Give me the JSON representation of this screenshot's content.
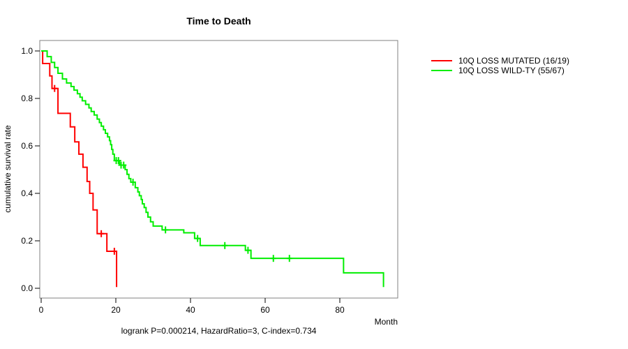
{
  "chart_data": {
    "type": "line",
    "subtype": "kaplan-meier-step",
    "title": "Time to Death",
    "xlabel": "Month",
    "ylabel": "cumulative survival rate",
    "footnote": "logrank P=0.000214, HazardRatio=3, C-index=0.734",
    "xlim": [
      0,
      96
    ],
    "ylim": [
      0.0,
      1.0
    ],
    "xticks": [
      0,
      20,
      40,
      60,
      80
    ],
    "yticks": [
      0.0,
      0.2,
      0.4,
      0.6,
      0.8,
      1.0
    ],
    "grid": false,
    "legend_position": "right-outside",
    "series": [
      {
        "name": "10Q LOSS MUTATED (16/19)",
        "color": "#ff0000",
        "steps": [
          [
            0,
            1.0
          ],
          [
            0.4,
            0.947
          ],
          [
            2.3,
            0.895
          ],
          [
            2.9,
            0.842
          ],
          [
            4.5,
            0.737
          ],
          [
            7.8,
            0.68
          ],
          [
            9.0,
            0.617
          ],
          [
            10.1,
            0.565
          ],
          [
            11.2,
            0.51
          ],
          [
            12.3,
            0.45
          ],
          [
            13.0,
            0.4
          ],
          [
            13.9,
            0.33
          ],
          [
            15.0,
            0.23
          ],
          [
            17.6,
            0.156
          ],
          [
            20.2,
            0.005
          ]
        ],
        "censors": [
          [
            3.6,
            0.842
          ],
          [
            16.1,
            0.23
          ],
          [
            19.6,
            0.156
          ]
        ]
      },
      {
        "name": "10Q LOSS WILD-TY (55/67)",
        "color": "#00ee00",
        "steps": [
          [
            0,
            1.0
          ],
          [
            1.6,
            0.976
          ],
          [
            2.7,
            0.952
          ],
          [
            3.6,
            0.93
          ],
          [
            4.5,
            0.906
          ],
          [
            5.7,
            0.882
          ],
          [
            6.8,
            0.865
          ],
          [
            8.0,
            0.85
          ],
          [
            8.8,
            0.835
          ],
          [
            9.7,
            0.82
          ],
          [
            10.4,
            0.805
          ],
          [
            11.0,
            0.79
          ],
          [
            11.9,
            0.775
          ],
          [
            12.8,
            0.76
          ],
          [
            13.4,
            0.745
          ],
          [
            14.2,
            0.73
          ],
          [
            15.0,
            0.713
          ],
          [
            15.6,
            0.698
          ],
          [
            16.1,
            0.683
          ],
          [
            16.7,
            0.668
          ],
          [
            17.2,
            0.653
          ],
          [
            17.8,
            0.638
          ],
          [
            18.3,
            0.622
          ],
          [
            18.6,
            0.605
          ],
          [
            18.9,
            0.585
          ],
          [
            19.2,
            0.565
          ],
          [
            19.6,
            0.538
          ],
          [
            21.0,
            0.519
          ],
          [
            22.5,
            0.5
          ],
          [
            23.0,
            0.48
          ],
          [
            23.5,
            0.462
          ],
          [
            24.0,
            0.447
          ],
          [
            25.2,
            0.424
          ],
          [
            25.9,
            0.406
          ],
          [
            26.3,
            0.39
          ],
          [
            26.8,
            0.374
          ],
          [
            27.1,
            0.356
          ],
          [
            27.6,
            0.34
          ],
          [
            28.1,
            0.32
          ],
          [
            28.6,
            0.3
          ],
          [
            29.3,
            0.28
          ],
          [
            30.0,
            0.262
          ],
          [
            32.4,
            0.246
          ],
          [
            38.2,
            0.234
          ],
          [
            41.1,
            0.21
          ],
          [
            42.6,
            0.18
          ],
          [
            54.7,
            0.16
          ],
          [
            56.2,
            0.126
          ],
          [
            81.0,
            0.065
          ],
          [
            91.7,
            0.005
          ]
        ],
        "censors": [
          [
            20.1,
            0.538
          ],
          [
            20.7,
            0.538
          ],
          [
            21.4,
            0.519
          ],
          [
            22.1,
            0.519
          ],
          [
            24.6,
            0.447
          ],
          [
            33.3,
            0.246
          ],
          [
            41.9,
            0.21
          ],
          [
            49.2,
            0.18
          ],
          [
            55.4,
            0.16
          ],
          [
            62.2,
            0.126
          ],
          [
            66.5,
            0.126
          ]
        ]
      }
    ]
  }
}
